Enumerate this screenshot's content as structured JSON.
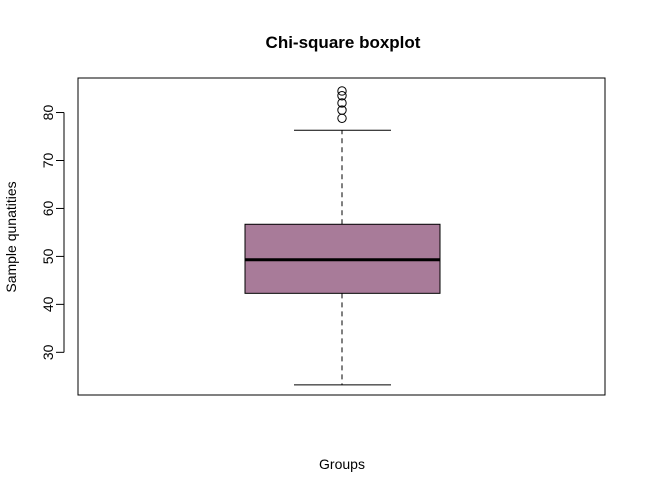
{
  "chart_data": {
    "type": "boxplot",
    "title": "Chi-square boxplot",
    "xlabel": "Groups",
    "ylabel": "Sample qunatities",
    "ylim": [
      21.1,
      87.2
    ],
    "yticks": [
      30,
      40,
      50,
      60,
      70,
      80
    ],
    "grid": false,
    "box": {
      "min": 23.2,
      "q1": 42.3,
      "median": 49.3,
      "q3": 56.7,
      "max": 76.3,
      "outliers": [
        78.8,
        80.5,
        82.0,
        83.5,
        84.5
      ],
      "fill_color": "#a87b99",
      "median_color": "#000000"
    }
  }
}
